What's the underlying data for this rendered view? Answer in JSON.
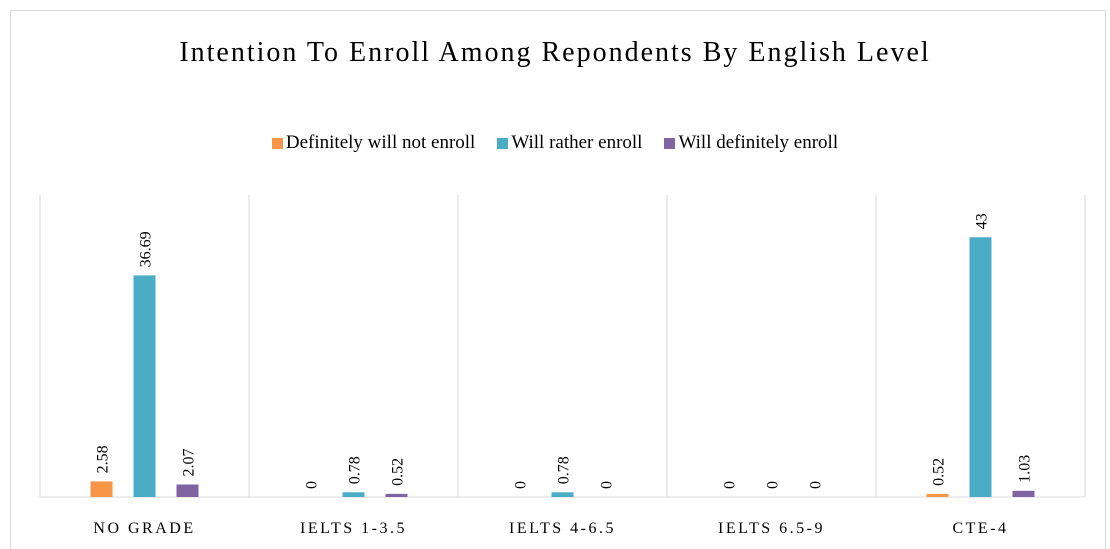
{
  "chart_data": {
    "type": "bar",
    "title": "Intention To Enroll Among Repondents By English Level",
    "categories": [
      "NO GRADE",
      "IELTS 1-3.5",
      "IELTS 4-6.5",
      "IELTS 6.5-9",
      "CTE-4"
    ],
    "series": [
      {
        "name": "Definitely will not enroll",
        "color": "#f79646",
        "values": [
          2.58,
          0,
          0,
          0,
          0.52
        ]
      },
      {
        "name": "Will rather enroll",
        "color": "#4bacc6",
        "values": [
          36.69,
          0.78,
          0.78,
          0,
          43
        ]
      },
      {
        "name": "Will definitely enroll",
        "color": "#8064a2",
        "values": [
          2.07,
          0.52,
          0,
          0,
          1.03
        ]
      }
    ],
    "ylim": [
      0,
      50
    ],
    "grid": true,
    "legend": "top"
  }
}
